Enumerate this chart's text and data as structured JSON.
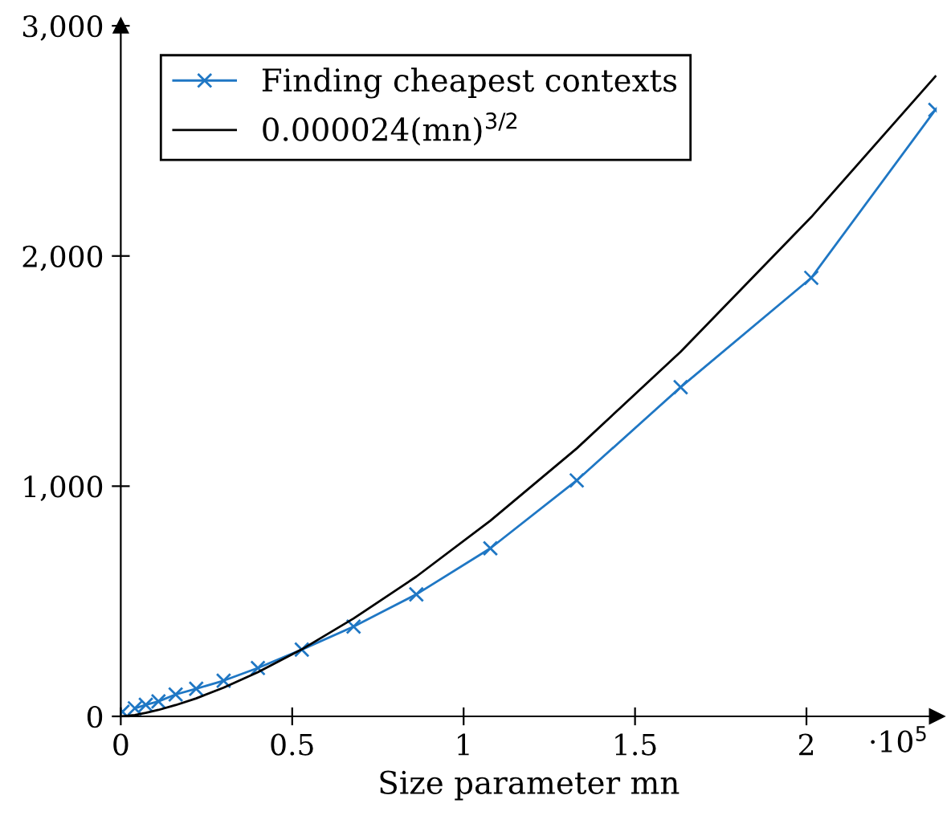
{
  "chart_data": {
    "type": "line",
    "xlabel": "Size parameter mn",
    "annotations": [
      "·10$^{5}$"
    ],
    "xlim": [
      0,
      2.38
    ],
    "ylim": [
      0,
      3000
    ],
    "xticks": [
      0,
      0.5,
      1,
      1.5,
      2
    ],
    "yticks": [
      0,
      {
        "value": 1000,
        "label": "1,000"
      },
      {
        "value": 2000,
        "label": "2,000"
      },
      {
        "value": 3000,
        "label": "3,000"
      }
    ],
    "grid": false,
    "legend": "top left",
    "series": [
      {
        "name": "Finding cheapest contexts",
        "color": "#1f77c4",
        "marker": "cross",
        "x": [
          0.005,
          0.028,
          0.041,
          0.073,
          0.11,
          0.16,
          0.22,
          0.3,
          0.4,
          0.528,
          0.679,
          0.862,
          1.078,
          1.33,
          1.633,
          2.014,
          2.376
        ],
        "values": [
          20,
          null,
          35,
          50,
          65,
          95,
          120,
          155,
          210,
          290,
          390,
          530,
          730,
          1025,
          1430,
          1905,
          2635
        ]
      },
      {
        "name": "0.000024(mn)$^{3/2}$",
        "color": "#000000",
        "marker": "none",
        "x": [
          0.005,
          0.028,
          0.041,
          0.073,
          0.11,
          0.16,
          0.22,
          0.3,
          0.4,
          0.528,
          0.679,
          0.862,
          1.078,
          1.33,
          1.633,
          2.014,
          2.376
        ],
        "values": [
          0,
          4,
          6,
          15,
          28,
          49,
          78,
          125,
          192,
          291,
          425,
          607,
          850,
          1164,
          1584,
          2169,
          2780
        ]
      }
    ]
  }
}
